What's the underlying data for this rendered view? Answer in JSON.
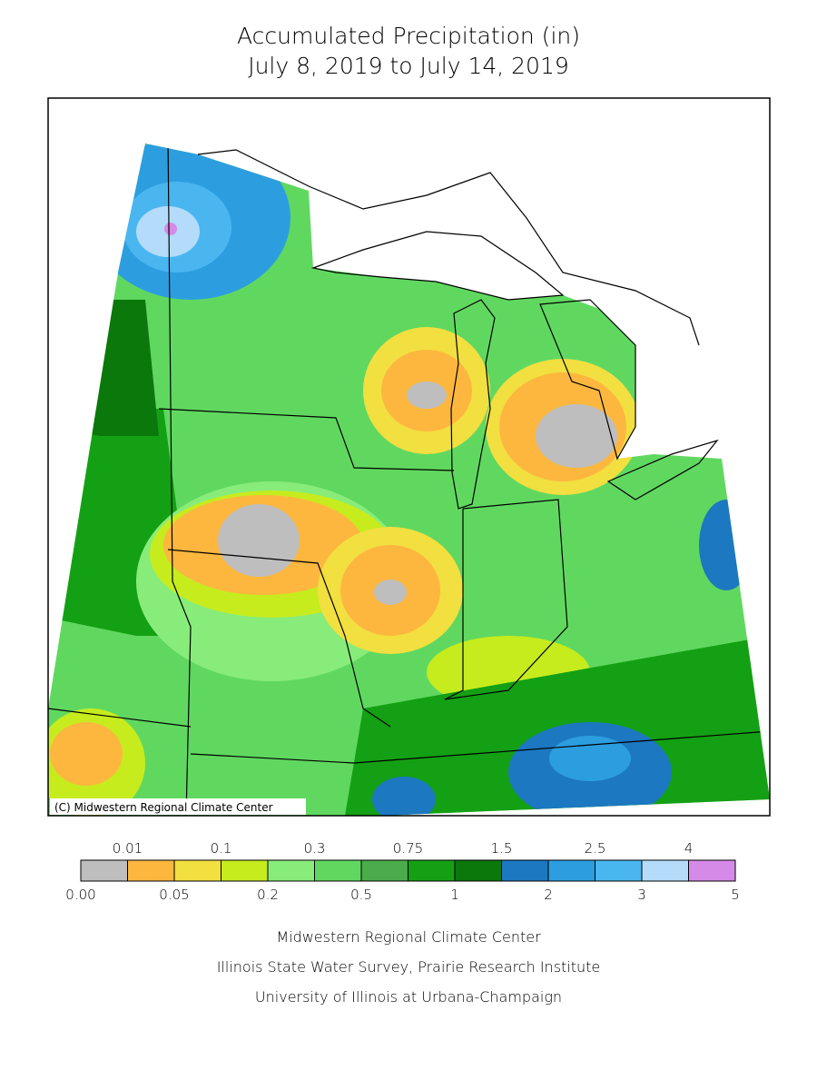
{
  "header": {
    "title": "Accumulated Precipitation (in)",
    "subtitle": "July 8, 2019 to July 14, 2019"
  },
  "map": {
    "copyright": "(C) Midwestern Regional Climate Center"
  },
  "legend": {
    "thresholds": [
      {
        "value": 0,
        "label": "0.00"
      },
      0.01,
      0.05,
      0.1,
      0.2,
      0.3,
      0.5,
      0.75,
      1,
      1.5,
      2,
      2.5,
      3,
      4,
      5
    ],
    "colors": [
      "#bebebe",
      "#fdb73f",
      "#f2df40",
      "#c6ec1e",
      "#88ec7a",
      "#60d860",
      "#4aac4a",
      "#14a014",
      "#0a780a",
      "#1c78c0",
      "#2c9ee0",
      "#4ab6f0",
      "#b4dcfa",
      "#d68ae8"
    ]
  },
  "credits": [
    "Midwestern Regional Climate Center",
    "Illinois State Water Survey, Prairie Research Institute",
    "University of Illinois at Urbana-Champaign"
  ]
}
